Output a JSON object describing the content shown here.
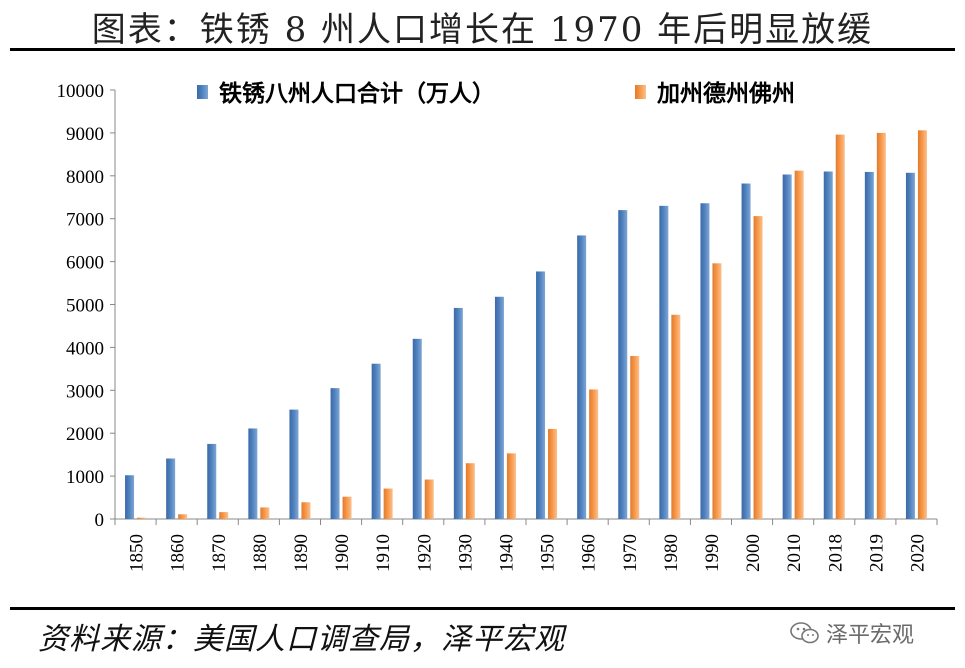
{
  "header": {
    "title": "图表：铁锈 8 州人口增长在 1970 年后明显放缓"
  },
  "footer": {
    "source": "资料来源：美国人口调查局，泽平宏观",
    "watermark": "泽平宏观",
    "watermark_icon": "wechat-icon"
  },
  "colors": {
    "series1": "#4F81BD",
    "series2": "#F79646",
    "axis": "#888888"
  },
  "chart_data": {
    "type": "bar",
    "title": "图表：铁锈 8 州人口增长在 1970 年后明显放缓",
    "categories": [
      "1850",
      "1860",
      "1870",
      "1880",
      "1890",
      "1900",
      "1910",
      "1920",
      "1930",
      "1940",
      "1950",
      "1960",
      "1970",
      "1980",
      "1990",
      "2000",
      "2010",
      "2018",
      "2019",
      "2020"
    ],
    "series": [
      {
        "name": "铁锈八州人口合计（万人）",
        "values": [
          1020,
          1410,
          1750,
          2110,
          2550,
          3050,
          3620,
          4200,
          4920,
          5180,
          5770,
          6610,
          7200,
          7300,
          7360,
          7820,
          8030,
          8100,
          8090,
          8070
        ]
      },
      {
        "name": "加州德州佛州",
        "values": [
          30,
          110,
          160,
          270,
          390,
          520,
          710,
          920,
          1300,
          1530,
          2100,
          3020,
          3800,
          4760,
          5960,
          7060,
          8120,
          8960,
          9000,
          9060
        ]
      }
    ],
    "yticks": [
      "0",
      "1000",
      "2000",
      "3000",
      "4000",
      "5000",
      "6000",
      "7000",
      "8000",
      "9000",
      "10000"
    ],
    "ylim": [
      0,
      10000
    ],
    "xlabel": "",
    "ylabel": "",
    "legend": "top",
    "grid": false
  }
}
